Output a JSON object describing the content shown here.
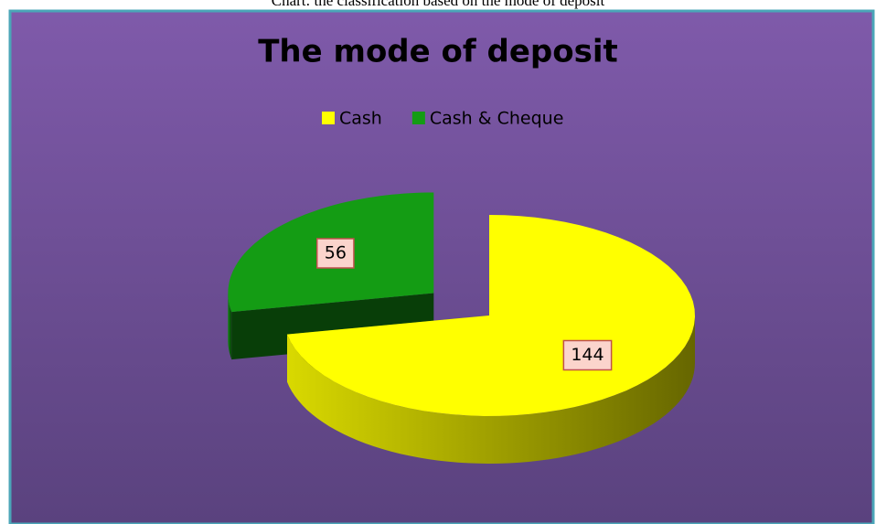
{
  "caption": "Chart: the classification based on the mode of deposit",
  "chart_data": {
    "type": "pie3d",
    "title": "The mode of deposit",
    "categories": [
      "Cash",
      "Cash & Cheque"
    ],
    "values": [
      144,
      56
    ],
    "colors": [
      "#ffff00",
      "#149c14"
    ],
    "legend": "top",
    "exploded": [
      false,
      true
    ]
  }
}
